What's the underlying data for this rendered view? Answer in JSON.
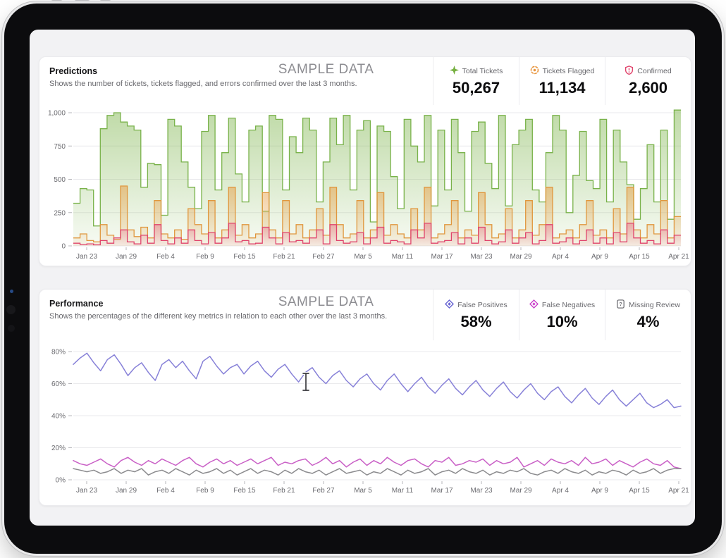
{
  "predictions_card": {
    "title": "Predictions",
    "description": "Shows the number of tickets, tickets flagged, and errors confirmed over the last 3 months.",
    "watermark": "SAMPLE DATA",
    "stats": [
      {
        "label": "Total Tickets",
        "value": "50,267",
        "icon": "sparkle-icon",
        "color": "#76b041"
      },
      {
        "label": "Tickets Flagged",
        "value": "11,134",
        "icon": "scan-target-icon",
        "color": "#e8963f"
      },
      {
        "label": "Confirmed",
        "value": "2,600",
        "icon": "shield-alert-icon",
        "color": "#e0436b"
      }
    ]
  },
  "performance_card": {
    "title": "Performance",
    "description": "Shows the percentages of the different key metrics in relation to each other over the last 3 months.",
    "watermark": "SAMPLE DATA",
    "stats": [
      {
        "label": "False Positives",
        "value": "58%",
        "icon": "diamond-target-icon",
        "color": "#6663d2"
      },
      {
        "label": "False Negatives",
        "value": "10%",
        "icon": "diamond-target-icon",
        "color": "#c93fc9"
      },
      {
        "label": "Missing Review",
        "value": "4%",
        "icon": "file-question-icon",
        "color": "#6e6e73"
      }
    ]
  },
  "chart_data": [
    {
      "type": "step-area",
      "title": "Predictions",
      "xlabel": "",
      "ylabel": "",
      "ylim": [
        0,
        1050
      ],
      "grid": true,
      "yticks": [
        {
          "label": "0",
          "value": 0
        },
        {
          "label": "250",
          "value": 250
        },
        {
          "label": "500",
          "value": 500
        },
        {
          "label": "750",
          "value": 750
        },
        {
          "label": "1,000",
          "value": 1000
        }
      ],
      "categories": [
        "Jan 23",
        "Jan 29",
        "Feb 4",
        "Feb 9",
        "Feb 15",
        "Feb 21",
        "Feb 27",
        "Mar 5",
        "Mar 11",
        "Mar 17",
        "Mar 23",
        "Mar 29",
        "Apr 4",
        "Apr 9",
        "Apr 15",
        "Apr 21"
      ],
      "series": [
        {
          "name": "Total Tickets",
          "color": "#79b24a",
          "fill_top": "rgba(139,188,95,0.55)",
          "fill_bottom": "rgba(139,188,95,0.07)",
          "values": [
            320,
            430,
            420,
            150,
            880,
            980,
            1000,
            930,
            900,
            870,
            440,
            620,
            610,
            230,
            950,
            900,
            630,
            440,
            280,
            860,
            980,
            420,
            700,
            960,
            540,
            330,
            870,
            900,
            260,
            980,
            950,
            420,
            820,
            700,
            960,
            870,
            330,
            630,
            960,
            760,
            980,
            420,
            870,
            940,
            180,
            900,
            860,
            520,
            280,
            950,
            750,
            630,
            980,
            300,
            870,
            420,
            950,
            700,
            260,
            860,
            930,
            620,
            430,
            980,
            300,
            760,
            870,
            950,
            420,
            330,
            700,
            980,
            870,
            250,
            530,
            860,
            490,
            430,
            950,
            330,
            870,
            630,
            460,
            200,
            430,
            760,
            330,
            870,
            200,
            1020
          ]
        },
        {
          "name": "Tickets Flagged",
          "color": "#e0973e",
          "fill_top": "rgba(231,160,72,0.55)",
          "fill_bottom": "rgba(231,160,72,0.07)",
          "values": [
            60,
            90,
            40,
            30,
            160,
            80,
            50,
            450,
            120,
            70,
            140,
            60,
            340,
            90,
            60,
            120,
            50,
            280,
            160,
            90,
            340,
            60,
            120,
            440,
            80,
            160,
            60,
            90,
            400,
            120,
            60,
            340,
            90,
            160,
            60,
            120,
            280,
            80,
            440,
            160,
            60,
            90,
            340,
            60,
            120,
            400,
            80,
            160,
            90,
            60,
            280,
            120,
            440,
            60,
            90,
            160,
            340,
            60,
            120,
            80,
            400,
            160,
            60,
            90,
            280,
            60,
            120,
            340,
            80,
            160,
            440,
            60,
            90,
            120,
            60,
            160,
            340,
            80,
            120,
            60,
            280,
            90,
            440,
            120,
            60,
            160,
            90,
            340,
            60,
            220
          ]
        },
        {
          "name": "Confirmed",
          "color": "#e0436b",
          "fill_top": "rgba(228,90,125,0.40)",
          "fill_bottom": "rgba(228,90,125,0.05)",
          "values": [
            20,
            10,
            15,
            8,
            40,
            20,
            60,
            120,
            30,
            15,
            80,
            20,
            160,
            40,
            15,
            60,
            20,
            120,
            40,
            15,
            100,
            20,
            60,
            170,
            30,
            40,
            15,
            20,
            140,
            60,
            15,
            100,
            30,
            40,
            20,
            60,
            120,
            15,
            160,
            40,
            20,
            30,
            100,
            15,
            60,
            140,
            20,
            40,
            30,
            15,
            120,
            60,
            170,
            20,
            30,
            40,
            100,
            15,
            60,
            20,
            140,
            40,
            15,
            30,
            120,
            20,
            60,
            100,
            15,
            40,
            160,
            20,
            30,
            60,
            15,
            40,
            120,
            20,
            60,
            15,
            100,
            30,
            170,
            60,
            20,
            40,
            15,
            120,
            20,
            80
          ]
        }
      ]
    },
    {
      "type": "line",
      "title": "Performance",
      "xlabel": "",
      "ylabel": "",
      "ylim": [
        0,
        85
      ],
      "grid": true,
      "yticks": [
        {
          "label": "0%",
          "value": 0
        },
        {
          "label": "20%",
          "value": 20
        },
        {
          "label": "40%",
          "value": 40
        },
        {
          "label": "60%",
          "value": 60
        },
        {
          "label": "80%",
          "value": 80
        }
      ],
      "categories": [
        "Jan 23",
        "Jan 29",
        "Feb 4",
        "Feb 9",
        "Feb 15",
        "Feb 21",
        "Feb 27",
        "Mar 5",
        "Mar 11",
        "Mar 17",
        "Mar 23",
        "Mar 29",
        "Apr 4",
        "Apr 9",
        "Apr 15",
        "Apr 21"
      ],
      "series": [
        {
          "name": "False Positives",
          "color": "#8781d8",
          "values": [
            72,
            76,
            79,
            73,
            68,
            75,
            78,
            72,
            65,
            70,
            73,
            67,
            62,
            72,
            75,
            70,
            74,
            68,
            63,
            74,
            77,
            71,
            66,
            70,
            72,
            66,
            71,
            74,
            68,
            64,
            69,
            72,
            66,
            61,
            67,
            70,
            64,
            60,
            65,
            68,
            62,
            58,
            63,
            66,
            60,
            56,
            62,
            66,
            60,
            55,
            60,
            64,
            58,
            54,
            59,
            63,
            57,
            53,
            58,
            62,
            56,
            52,
            57,
            61,
            55,
            51,
            56,
            60,
            54,
            50,
            55,
            58,
            52,
            48,
            53,
            57,
            51,
            47,
            52,
            56,
            50,
            46,
            50,
            54,
            48,
            45,
            47,
            50,
            45,
            46
          ]
        },
        {
          "name": "False Negatives",
          "color": "#c95fc6",
          "values": [
            12,
            10,
            9,
            11,
            13,
            10,
            8,
            12,
            14,
            11,
            9,
            12,
            10,
            13,
            11,
            9,
            12,
            14,
            10,
            8,
            11,
            13,
            10,
            12,
            9,
            11,
            13,
            10,
            12,
            14,
            9,
            11,
            10,
            12,
            13,
            9,
            11,
            14,
            10,
            12,
            8,
            11,
            13,
            9,
            12,
            10,
            14,
            11,
            9,
            12,
            13,
            10,
            8,
            12,
            11,
            14,
            9,
            10,
            12,
            11,
            13,
            9,
            12,
            10,
            11,
            14,
            8,
            10,
            12,
            9,
            13,
            11,
            10,
            12,
            9,
            14,
            10,
            11,
            13,
            9,
            12,
            10,
            8,
            11,
            13,
            10,
            9,
            12,
            8,
            7
          ]
        },
        {
          "name": "Missing Review",
          "color": "#8b8b8e",
          "values": [
            7,
            6,
            5,
            6,
            4,
            5,
            7,
            4,
            6,
            5,
            7,
            3,
            5,
            6,
            4,
            7,
            5,
            3,
            6,
            4,
            5,
            7,
            4,
            6,
            3,
            5,
            7,
            4,
            6,
            5,
            3,
            6,
            4,
            7,
            5,
            4,
            6,
            3,
            5,
            7,
            4,
            5,
            6,
            3,
            5,
            4,
            7,
            5,
            3,
            6,
            4,
            5,
            7,
            3,
            5,
            6,
            4,
            7,
            5,
            4,
            6,
            3,
            5,
            4,
            6,
            5,
            7,
            4,
            3,
            5,
            6,
            4,
            7,
            5,
            4,
            6,
            3,
            5,
            4,
            6,
            5,
            3,
            6,
            4,
            5,
            7,
            4,
            6,
            7,
            7
          ]
        }
      ]
    }
  ]
}
